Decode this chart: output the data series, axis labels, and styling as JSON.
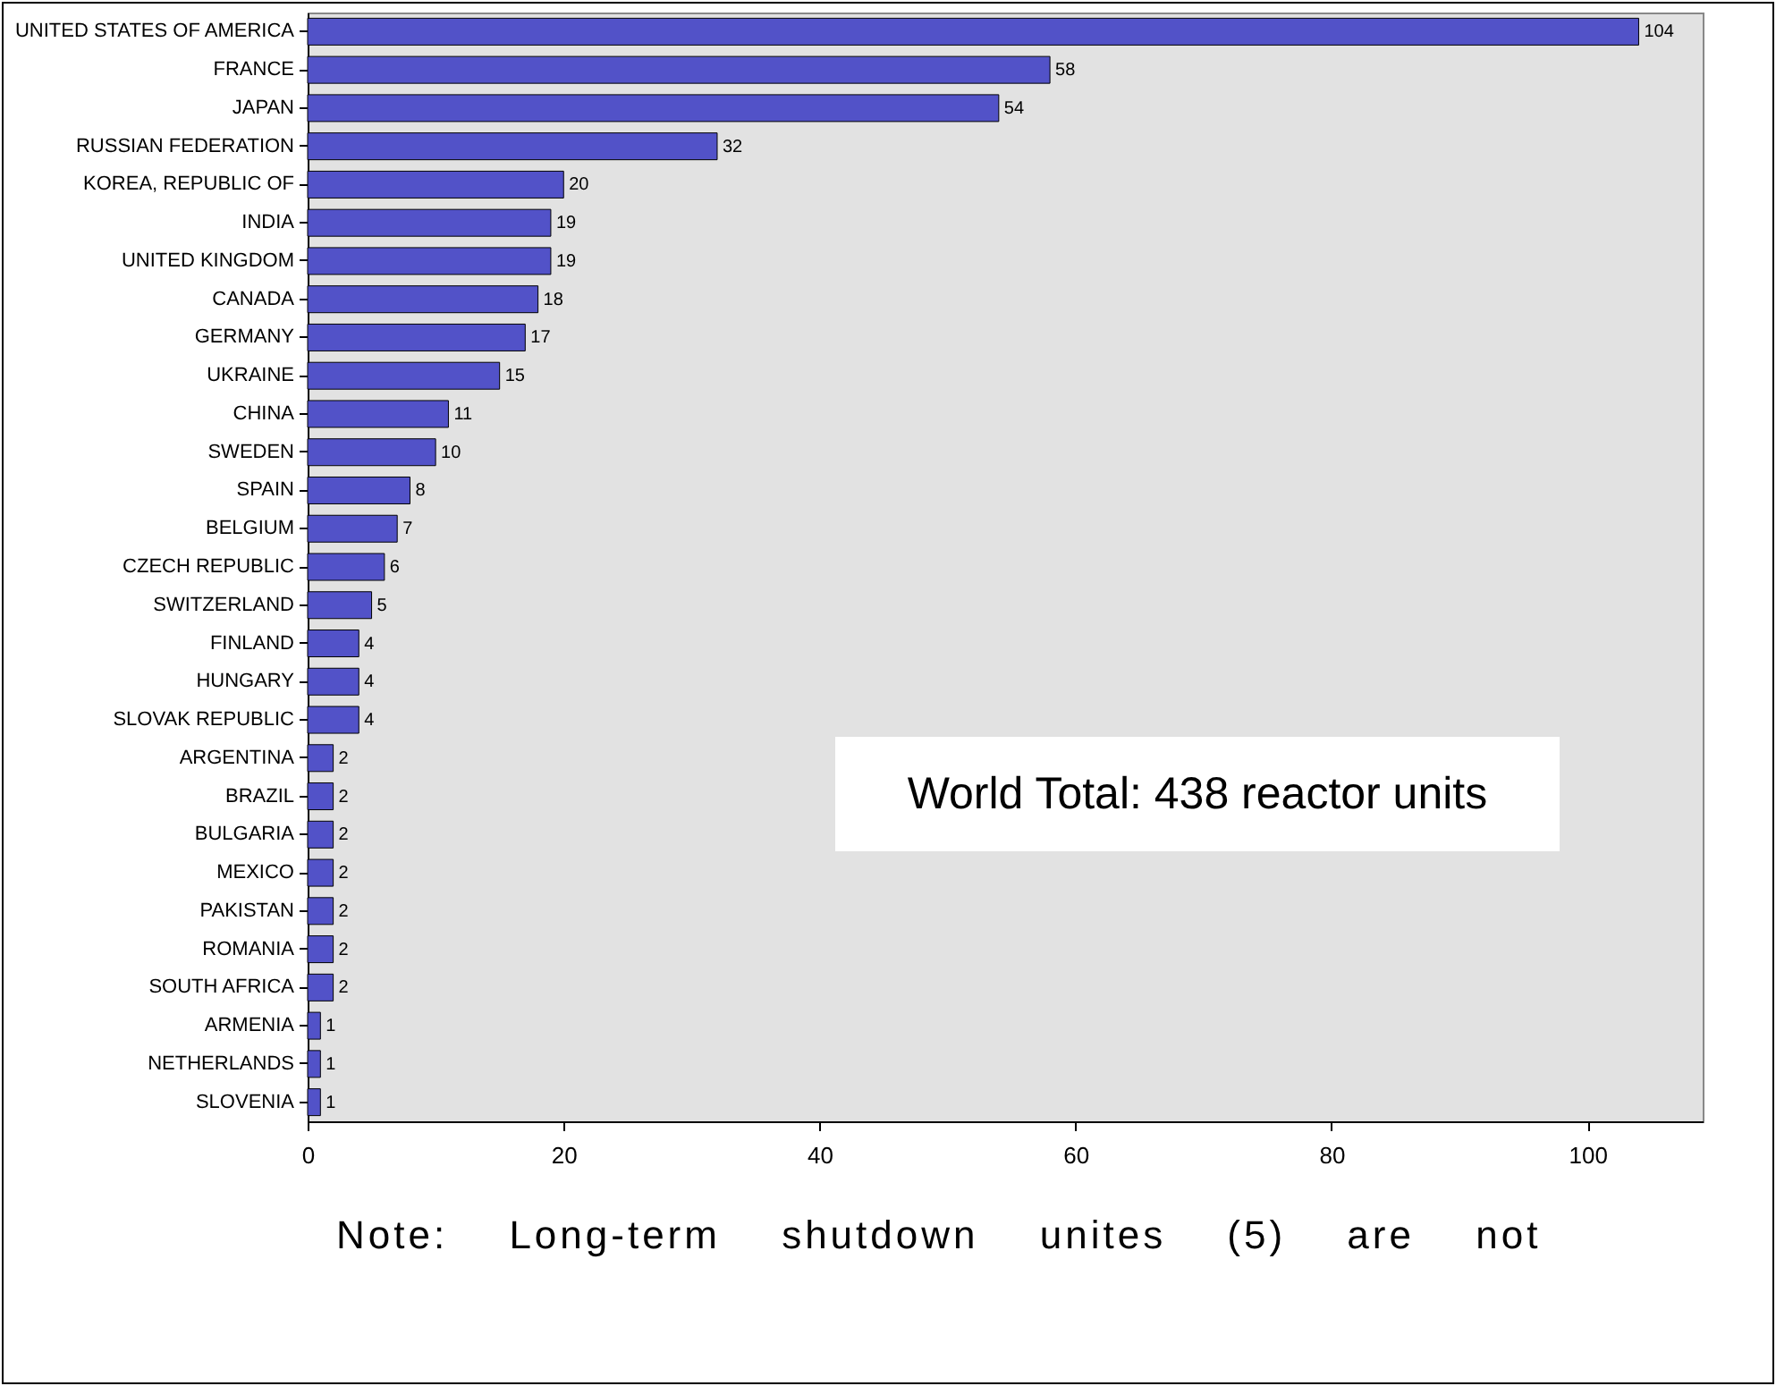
{
  "chart_data": {
    "type": "bar",
    "orientation": "horizontal",
    "categories": [
      "UNITED STATES OF AMERICA",
      "FRANCE",
      "JAPAN",
      "RUSSIAN FEDERATION",
      "KOREA, REPUBLIC OF",
      "INDIA",
      "UNITED KINGDOM",
      "CANADA",
      "GERMANY",
      "UKRAINE",
      "CHINA",
      "SWEDEN",
      "SPAIN",
      "BELGIUM",
      "CZECH REPUBLIC",
      "SWITZERLAND",
      "FINLAND",
      "HUNGARY",
      "SLOVAK REPUBLIC",
      "ARGENTINA",
      "BRAZIL",
      "BULGARIA",
      "MEXICO",
      "PAKISTAN",
      "ROMANIA",
      "SOUTH AFRICA",
      "ARMENIA",
      "NETHERLANDS",
      "SLOVENIA"
    ],
    "values": [
      104,
      58,
      54,
      32,
      20,
      19,
      19,
      18,
      17,
      15,
      11,
      10,
      8,
      7,
      6,
      5,
      4,
      4,
      4,
      2,
      2,
      2,
      2,
      2,
      2,
      2,
      1,
      1,
      1
    ],
    "color": "#5252c8",
    "xlim": [
      0,
      109
    ],
    "xticks": [
      0,
      20,
      40,
      60,
      80,
      100
    ],
    "grid": false,
    "data_labels": true,
    "annotations": [
      "World Total:  438 reactor units",
      "Note: Long-term shutdown unites (5) are not"
    ]
  }
}
